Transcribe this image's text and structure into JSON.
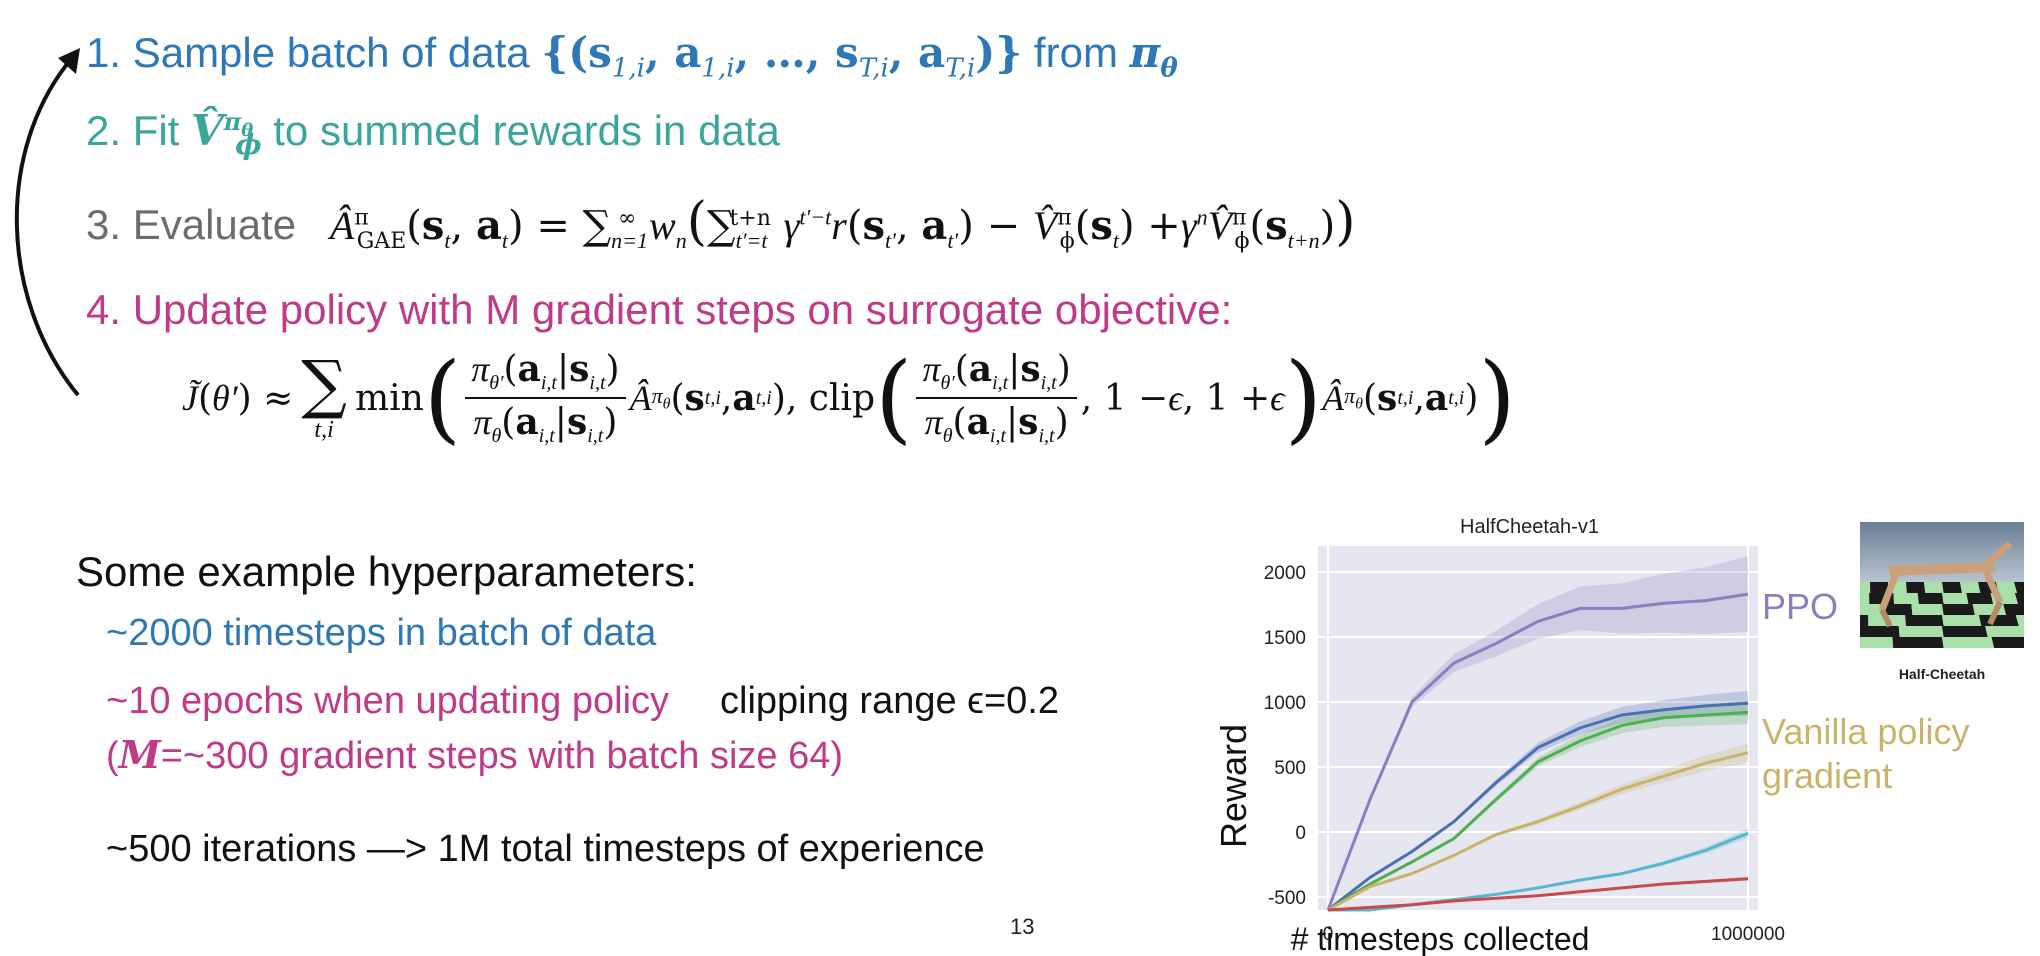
{
  "steps": {
    "s1_prefix": "1. Sample batch of data ",
    "s1_math": "{(s",
    "s1_from": " from ",
    "s2_prefix": "2. Fit ",
    "s2_suffix": " to summed rewards in data",
    "s3_prefix": "3. Evaluate",
    "s4_text": "4. Update policy with M gradient steps on surrogate objective:"
  },
  "hyper": {
    "heading": "Some example hyperparameters:",
    "timesteps": "~2000 timesteps in batch of data",
    "epochs": "~10 epochs when updating policy",
    "clip": "clipping range ϵ=0.2",
    "gradient_steps_pre": "(",
    "gradient_steps_m": "M",
    "gradient_steps_post": "=~300 gradient steps with batch size 64)",
    "iterations": "~500 iterations —> 1M total timesteps of experience"
  },
  "page_number": "13",
  "thumbnail_label": "Half-Cheetah",
  "chart_data": {
    "type": "line",
    "title": "HalfCheetah-v1",
    "xlabel": "# timesteps collected",
    "ylabel": "Reward",
    "x_ticks": [
      "0",
      "1000000"
    ],
    "y_ticks": [
      2000,
      1500,
      1000,
      500,
      0,
      -500
    ],
    "xlim": [
      0,
      1000000
    ],
    "ylim": [
      -600,
      2200
    ],
    "grid": true,
    "legend_labels": [
      "PPO",
      "Vanilla policy gradient"
    ],
    "x": [
      0,
      100000,
      200000,
      300000,
      400000,
      500000,
      600000,
      700000,
      800000,
      900000,
      1000000
    ],
    "series": [
      {
        "color": "#8a7fc0",
        "values": [
          -600,
          250,
          1000,
          1300,
          1450,
          1620,
          1720,
          1720,
          1760,
          1780,
          1830
        ]
      },
      {
        "color": "#4a6fb5",
        "values": [
          -600,
          -350,
          -150,
          80,
          380,
          650,
          800,
          900,
          940,
          970,
          990
        ]
      },
      {
        "color": "#4caf50",
        "values": [
          -600,
          -400,
          -230,
          -50,
          250,
          540,
          700,
          820,
          880,
          900,
          920
        ]
      },
      {
        "color": "#c9b36a",
        "values": [
          -600,
          -420,
          -320,
          -180,
          -20,
          80,
          200,
          330,
          430,
          530,
          610
        ]
      },
      {
        "color": "#59b6cf",
        "values": [
          -600,
          -600,
          -560,
          -520,
          -480,
          -430,
          -370,
          -320,
          -240,
          -140,
          -10
        ]
      },
      {
        "color": "#c94a4a",
        "values": [
          -600,
          -580,
          -560,
          -530,
          -510,
          -490,
          -460,
          -430,
          -400,
          -380,
          -360
        ]
      }
    ]
  }
}
